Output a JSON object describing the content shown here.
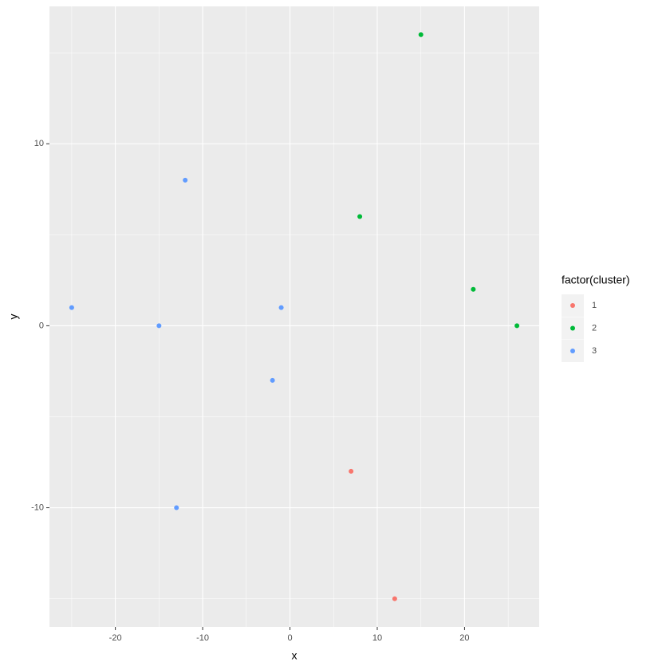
{
  "chart_data": {
    "type": "scatter",
    "x_label": "x",
    "y_label": "y",
    "legend_title": "factor(cluster)",
    "legend_position": "right",
    "xlim": [
      -27.55,
      28.55
    ],
    "ylim": [
      -16.55,
      17.55
    ],
    "xticks": [
      -20,
      -10,
      0,
      10,
      20
    ],
    "yticks": [
      -10,
      0,
      10
    ],
    "x_minor_breaks": [
      -25,
      -15,
      -5,
      5,
      15,
      25
    ],
    "y_minor_breaks": [
      -15,
      -5,
      5,
      15
    ],
    "grid": true,
    "series": [
      {
        "name": "1",
        "color": "#F8766D",
        "x": [
          7,
          12
        ],
        "values": [
          -8,
          -15
        ]
      },
      {
        "name": "2",
        "color": "#00BA38",
        "x": [
          15,
          8,
          21,
          26
        ],
        "values": [
          16,
          6,
          2,
          0
        ]
      },
      {
        "name": "3",
        "color": "#619CFF",
        "x": [
          -12,
          -25,
          -15,
          -1,
          -2,
          -13
        ],
        "values": [
          8,
          1,
          0,
          1,
          -3,
          -10
        ]
      }
    ]
  }
}
